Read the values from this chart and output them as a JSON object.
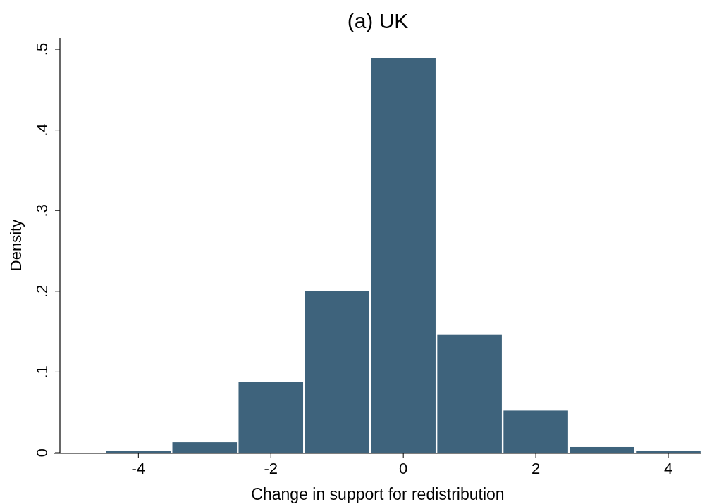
{
  "chart_data": {
    "type": "histogram",
    "title": "(a) UK",
    "xlabel": "Change in support for redistribution",
    "ylabel": "Density",
    "bins": [
      -4.5,
      -3.5,
      -2.5,
      -1.5,
      -0.5,
      0.5,
      1.5,
      2.5,
      3.5,
      4.5
    ],
    "values": [
      0.002,
      0.013,
      0.088,
      0.2,
      0.489,
      0.146,
      0.052,
      0.007,
      0.002
    ],
    "color": "#3e637c",
    "xlim": [
      -5.27,
      4.5
    ],
    "xticks": [
      -4,
      -2,
      0,
      2,
      4
    ],
    "ylim": [
      0,
      0.514
    ],
    "yticks": [
      {
        "value": 0,
        "label": "0"
      },
      {
        "value": 0.1,
        "label": ".1"
      },
      {
        "value": 0.2,
        "label": ".2"
      },
      {
        "value": 0.3,
        "label": ".3"
      },
      {
        "value": 0.4,
        "label": ".4"
      },
      {
        "value": 0.5,
        "label": ".5"
      }
    ],
    "grid": false
  }
}
